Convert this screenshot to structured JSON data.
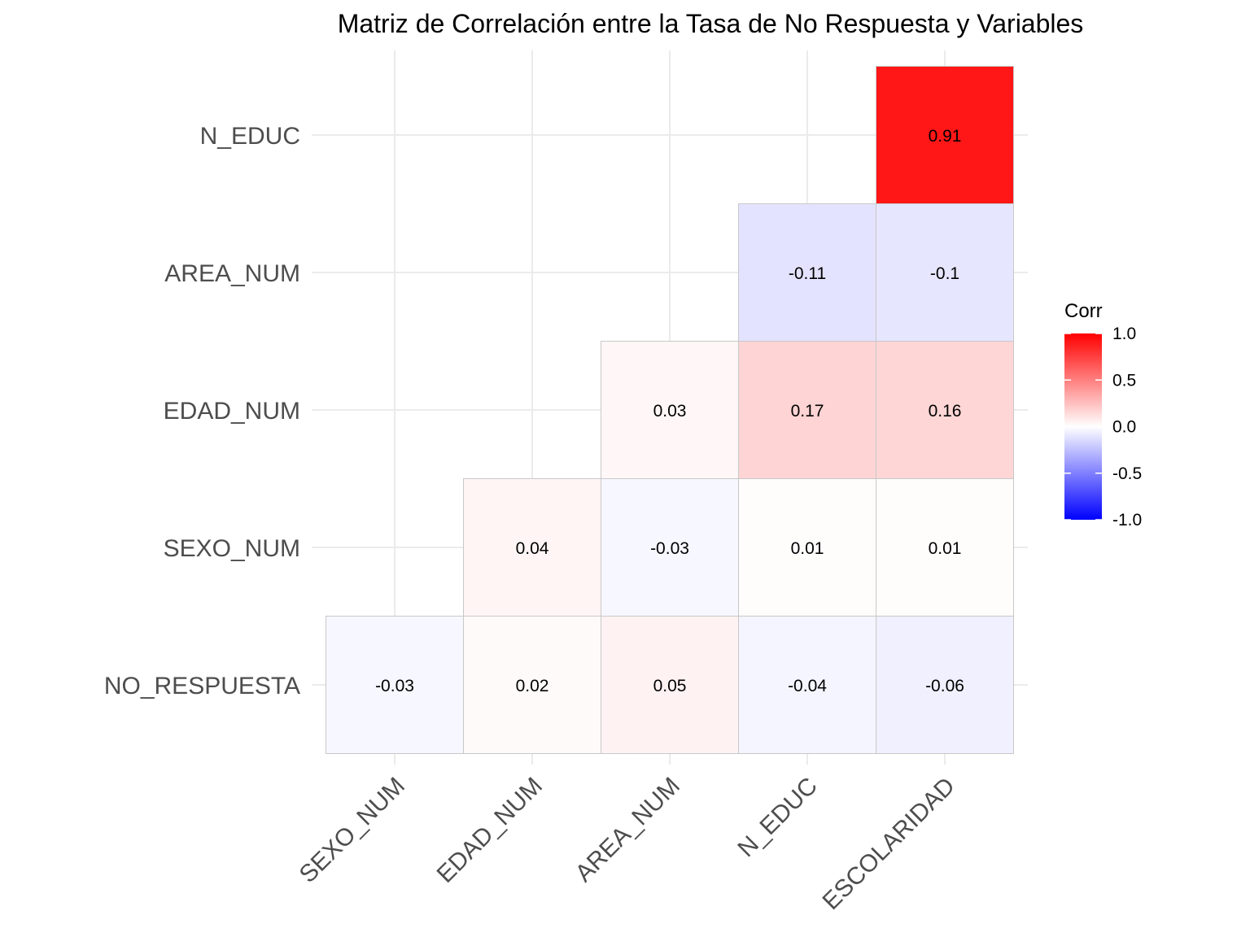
{
  "chart_data": {
    "type": "heatmap",
    "title": "Matriz de Correlación entre la Tasa de No Respuesta y Variables",
    "x_categories": [
      "SEXO_NUM",
      "EDAD_NUM",
      "AREA_NUM",
      "N_EDUC",
      "ESCOLARIDAD"
    ],
    "y_categories": [
      "NO_RESPUESTA",
      "SEXO_NUM",
      "EDAD_NUM",
      "AREA_NUM",
      "N_EDUC"
    ],
    "cells": [
      {
        "x": "SEXO_NUM",
        "y": "NO_RESPUESTA",
        "value": -0.03,
        "label": "-0.03"
      },
      {
        "x": "EDAD_NUM",
        "y": "NO_RESPUESTA",
        "value": 0.02,
        "label": "0.02"
      },
      {
        "x": "AREA_NUM",
        "y": "NO_RESPUESTA",
        "value": 0.05,
        "label": "0.05"
      },
      {
        "x": "N_EDUC",
        "y": "NO_RESPUESTA",
        "value": -0.04,
        "label": "-0.04"
      },
      {
        "x": "ESCOLARIDAD",
        "y": "NO_RESPUESTA",
        "value": -0.06,
        "label": "-0.06"
      },
      {
        "x": "EDAD_NUM",
        "y": "SEXO_NUM",
        "value": 0.04,
        "label": "0.04"
      },
      {
        "x": "AREA_NUM",
        "y": "SEXO_NUM",
        "value": -0.03,
        "label": "-0.03"
      },
      {
        "x": "N_EDUC",
        "y": "SEXO_NUM",
        "value": 0.01,
        "label": "0.01"
      },
      {
        "x": "ESCOLARIDAD",
        "y": "SEXO_NUM",
        "value": 0.01,
        "label": "0.01"
      },
      {
        "x": "AREA_NUM",
        "y": "EDAD_NUM",
        "value": 0.03,
        "label": "0.03"
      },
      {
        "x": "N_EDUC",
        "y": "EDAD_NUM",
        "value": 0.17,
        "label": "0.17"
      },
      {
        "x": "ESCOLARIDAD",
        "y": "EDAD_NUM",
        "value": 0.16,
        "label": "0.16"
      },
      {
        "x": "N_EDUC",
        "y": "AREA_NUM",
        "value": -0.11,
        "label": "-0.11"
      },
      {
        "x": "ESCOLARIDAD",
        "y": "AREA_NUM",
        "value": -0.1,
        "label": "-0.1"
      },
      {
        "x": "ESCOLARIDAD",
        "y": "N_EDUC",
        "value": 0.91,
        "label": "0.91"
      }
    ],
    "legend": {
      "title": "Corr",
      "range": [
        -1.0,
        1.0
      ],
      "ticks": [
        1.0,
        0.5,
        0.0,
        -0.5,
        -1.0
      ],
      "tick_labels": [
        "1.0",
        "0.5",
        "0.0",
        "-0.5",
        "-1.0"
      ],
      "low_color": "#0000ff",
      "mid_color": "#ffffff",
      "high_color": "#ff0000",
      "placement": "right"
    },
    "grid": true,
    "x_tick_rotation_deg": 45
  }
}
